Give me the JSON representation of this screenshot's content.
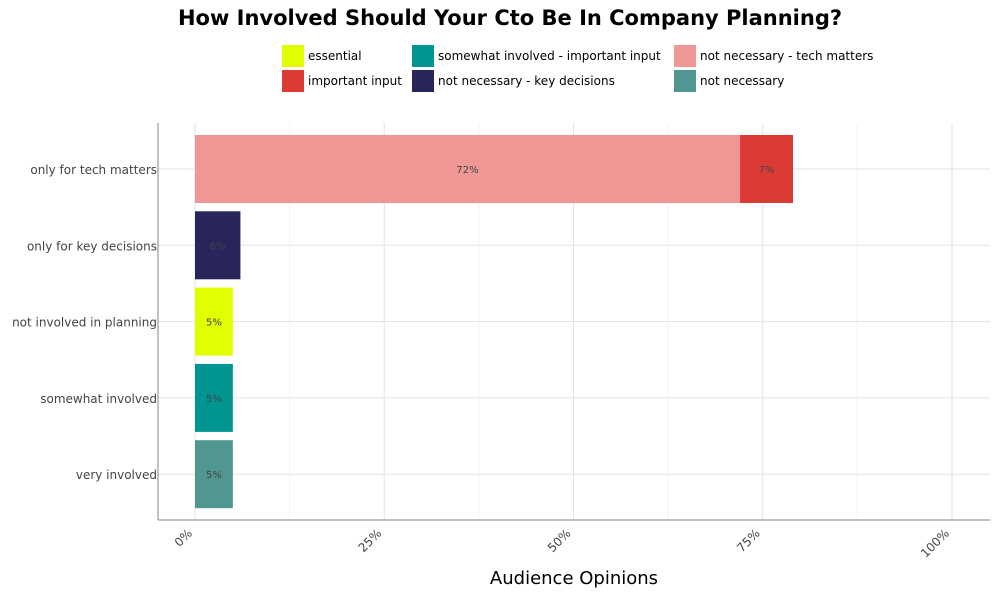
{
  "chart_data": {
    "type": "bar",
    "orientation": "horizontal",
    "stacked": true,
    "title": "How Involved Should Your Cto Be In Company Planning?",
    "xlabel": "Audience Opinions",
    "ylabel": "",
    "xlim": [
      0,
      100
    ],
    "x_ticks": [
      "0%",
      "25%",
      "50%",
      "75%",
      "100%"
    ],
    "x_tick_values": [
      0,
      25,
      50,
      75,
      100
    ],
    "grid": true,
    "legend_position": "top",
    "categories": [
      "only for tech matters",
      "only for key decisions",
      "not involved in planning",
      "somewhat involved",
      "very involved"
    ],
    "series": [
      {
        "name": "not necessary - tech matters",
        "color": "#EF9794",
        "values": [
          72,
          0,
          0,
          0,
          0
        ],
        "labels": [
          "72%",
          "",
          "",
          "",
          ""
        ]
      },
      {
        "name": "important input",
        "color": "#DC3A35",
        "values": [
          7,
          0,
          0,
          0,
          0
        ],
        "labels": [
          "7%",
          "",
          "",
          "",
          ""
        ]
      },
      {
        "name": "not necessary - key decisions",
        "color": "#28255A",
        "values": [
          0,
          6,
          0,
          0,
          0
        ],
        "labels": [
          "",
          "6%",
          "",
          "",
          ""
        ]
      },
      {
        "name": "essential",
        "color": "#E1FF00",
        "values": [
          0,
          0,
          5,
          0,
          0
        ],
        "labels": [
          "",
          "",
          "5%",
          "",
          ""
        ]
      },
      {
        "name": "somewhat involved - important input",
        "color": "#009591",
        "values": [
          0,
          0,
          0,
          5,
          0
        ],
        "labels": [
          "",
          "",
          "",
          "5%",
          ""
        ]
      },
      {
        "name": "not necessary",
        "color": "#519791",
        "values": [
          0,
          0,
          0,
          0,
          5
        ],
        "labels": [
          "",
          "",
          "",
          "",
          "5%"
        ]
      }
    ],
    "legend_order": [
      "essential",
      "important input",
      "somewhat involved - important input",
      "not necessary - key decisions",
      "not necessary - tech matters",
      "not necessary"
    ]
  }
}
